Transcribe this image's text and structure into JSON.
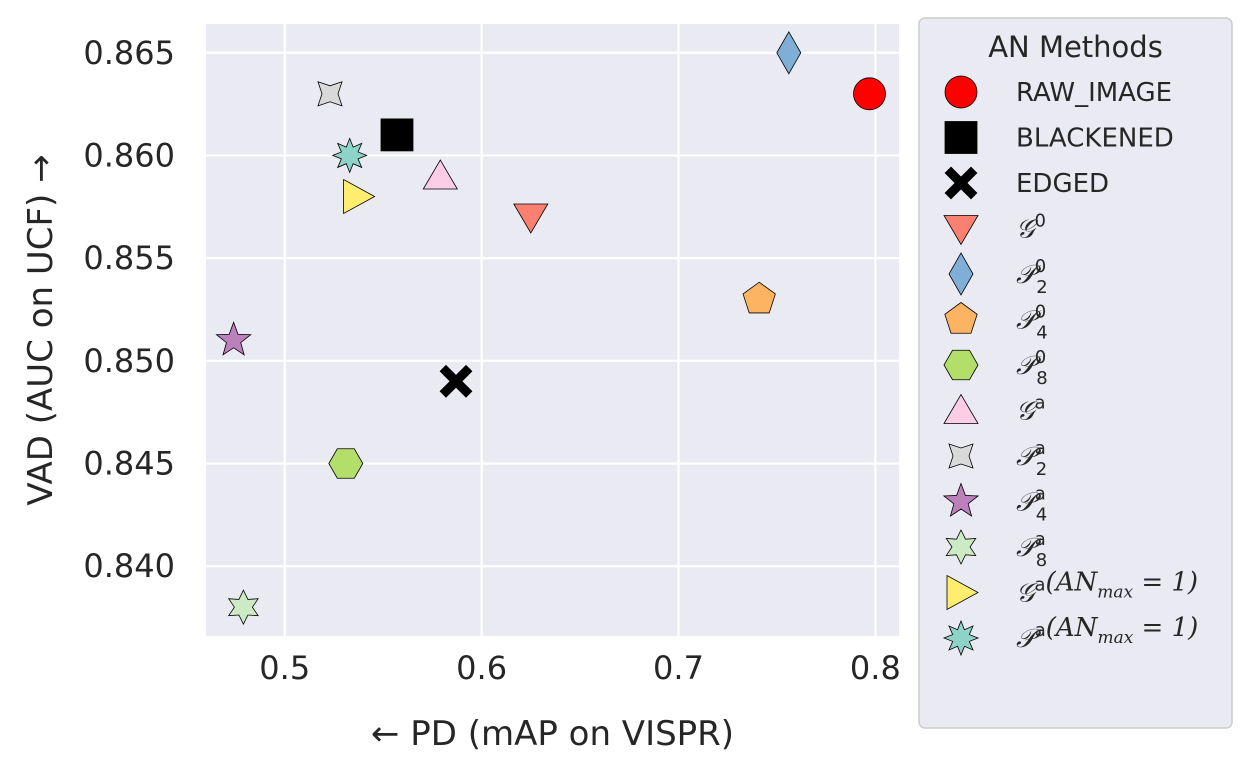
{
  "chart_data": {
    "type": "scatter",
    "title": "",
    "xlabel": "← PD (mAP on VISPR)",
    "ylabel": "VAD (AUC on UCF) →",
    "xlim": [
      0.46,
      0.812
    ],
    "ylim": [
      0.8366,
      0.8664
    ],
    "xticks": [
      0.5,
      0.6,
      0.7,
      0.8
    ],
    "xtick_labels": [
      "0.5",
      "0.6",
      "0.7",
      "0.8"
    ],
    "yticks": [
      0.84,
      0.845,
      0.85,
      0.855,
      0.86,
      0.865
    ],
    "ytick_labels": [
      "0.840",
      "0.845",
      "0.850",
      "0.855",
      "0.860",
      "0.865"
    ],
    "grid": true,
    "legend": {
      "title": "AN Methods",
      "placement": "outside right"
    },
    "series": [
      {
        "name": "RAW_IMAGE",
        "legend_main": "RAW_IMAGE",
        "marker": "circle",
        "color": "#ff0000",
        "x": 0.797,
        "y": 0.863
      },
      {
        "name": "BLACKENED",
        "legend_main": "BLACKENED",
        "marker": "square",
        "color": "#000000",
        "x": 0.557,
        "y": 0.861
      },
      {
        "name": "EDGED",
        "legend_main": "EDGED",
        "marker": "x-thick",
        "color": "#000000",
        "x": 0.587,
        "y": 0.849
      },
      {
        "name": "G^0",
        "legend_main": "𝒢",
        "legend_sup": "0",
        "legend_sub": "",
        "marker": "triangle-down",
        "color": "#fa8072",
        "x": 0.625,
        "y": 0.857
      },
      {
        "name": "P_2^0",
        "legend_main": "𝒫",
        "legend_sup": "0",
        "legend_sub": "2",
        "marker": "diamond",
        "color": "#7fafd6",
        "x": 0.756,
        "y": 0.865
      },
      {
        "name": "P_4^0",
        "legend_main": "𝒫",
        "legend_sup": "0",
        "legend_sub": "4",
        "marker": "pentagon",
        "color": "#fdb462",
        "x": 0.741,
        "y": 0.853
      },
      {
        "name": "P_8^0",
        "legend_main": "𝒫",
        "legend_sup": "0",
        "legend_sub": "8",
        "marker": "hexagon",
        "color": "#b3de69",
        "x": 0.531,
        "y": 0.845
      },
      {
        "name": "G^a",
        "legend_main": "𝒢",
        "legend_sup": "a",
        "legend_sub": "",
        "marker": "triangle-up",
        "color": "#fccde5",
        "x": 0.579,
        "y": 0.859
      },
      {
        "name": "P_2^a",
        "legend_main": "𝒫",
        "legend_sup": "a",
        "legend_sub": "2",
        "marker": "star4",
        "color": "#d9d9d9",
        "x": 0.523,
        "y": 0.863
      },
      {
        "name": "P_4^a",
        "legend_main": "𝒫",
        "legend_sup": "a",
        "legend_sub": "4",
        "marker": "star5",
        "color": "#bc80bd",
        "x": 0.474,
        "y": 0.851
      },
      {
        "name": "P_8^a",
        "legend_main": "𝒫",
        "legend_sup": "a",
        "legend_sub": "8",
        "marker": "star6",
        "color": "#ccebc5",
        "x": 0.479,
        "y": 0.838
      },
      {
        "name": "G^a(AN_max = 1)",
        "legend_main": "𝒢",
        "legend_sup": "a",
        "legend_sub": "",
        "legend_tail": "(AN",
        "legend_tail_sub": "max",
        "legend_tail_end": " = 1)",
        "marker": "triangle-right",
        "color": "#ffed6f",
        "x": 0.537,
        "y": 0.858
      },
      {
        "name": "P^a(AN_max = 1)",
        "legend_main": "𝒫",
        "legend_sup": "a",
        "legend_sub": "",
        "legend_tail": "(AN",
        "legend_tail_sub": "max",
        "legend_tail_end": " = 1)",
        "marker": "star8",
        "color": "#8dd3c7",
        "x": 0.533,
        "y": 0.86
      }
    ]
  },
  "colors": {
    "plot_background": "#eaeaf2",
    "grid": "#ffffff",
    "legend_background": "#eaeaf2",
    "legend_border": "#cccccc"
  }
}
